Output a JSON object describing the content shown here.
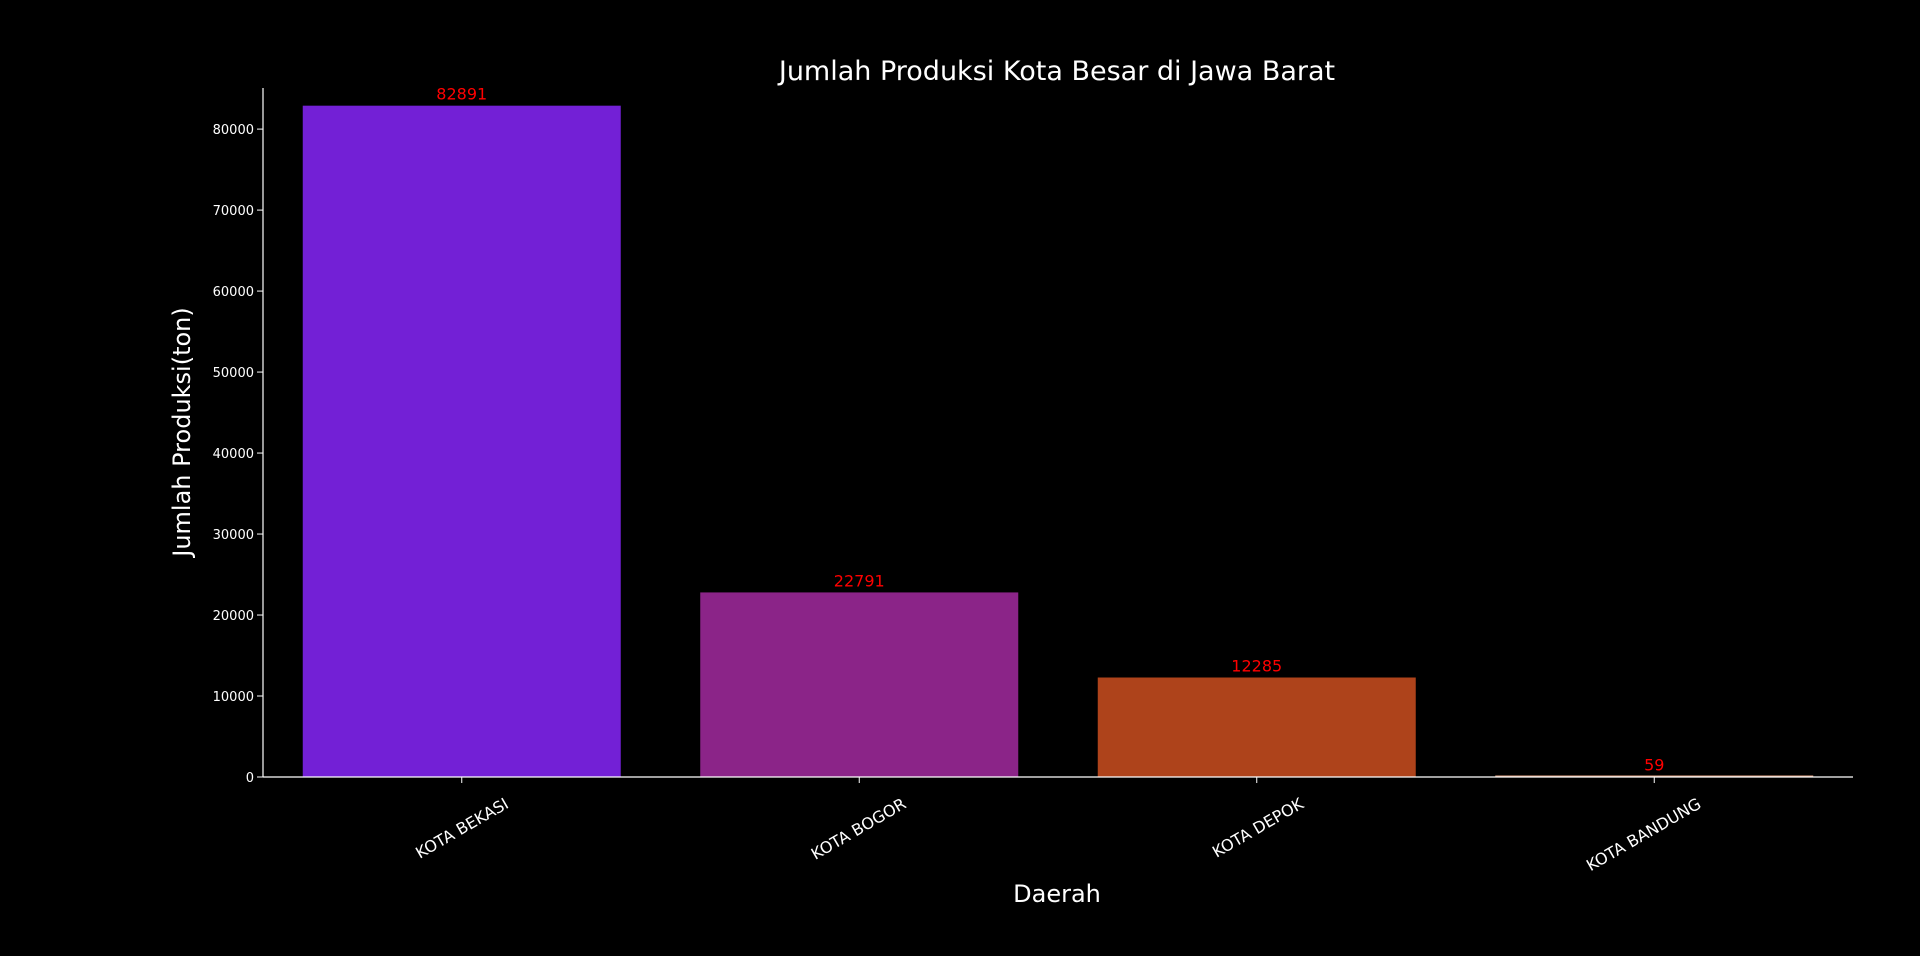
{
  "chart_data": {
    "type": "bar",
    "title": "Jumlah Produksi Kota Besar di Jawa Barat",
    "xlabel": "Daerah",
    "ylabel": "Jumlah Produksi(ton)",
    "categories": [
      "KOTA BEKASI",
      "KOTA BOGOR",
      "KOTA DEPOK",
      "KOTA BANDUNG"
    ],
    "values": [
      82891,
      22791,
      12285,
      59
    ],
    "data_labels": [
      "82891",
      "22791",
      "12285",
      "59"
    ],
    "bar_colors": [
      "#7320d6",
      "#8b2488",
      "#ae431b",
      "#e0a080"
    ],
    "ylim": [
      0,
      87000
    ],
    "yticks": [
      0,
      10000,
      20000,
      30000,
      40000,
      50000,
      60000,
      70000,
      80000
    ],
    "ytick_labels": [
      "0",
      "10000",
      "20000",
      "30000",
      "40000",
      "50000",
      "60000",
      "70000",
      "80000"
    ],
    "grid": false,
    "legend": "none",
    "colors": {
      "background": "#000000",
      "axis": "#ffffff",
      "text": "#ffffff",
      "data_label": "#ff0000"
    }
  }
}
